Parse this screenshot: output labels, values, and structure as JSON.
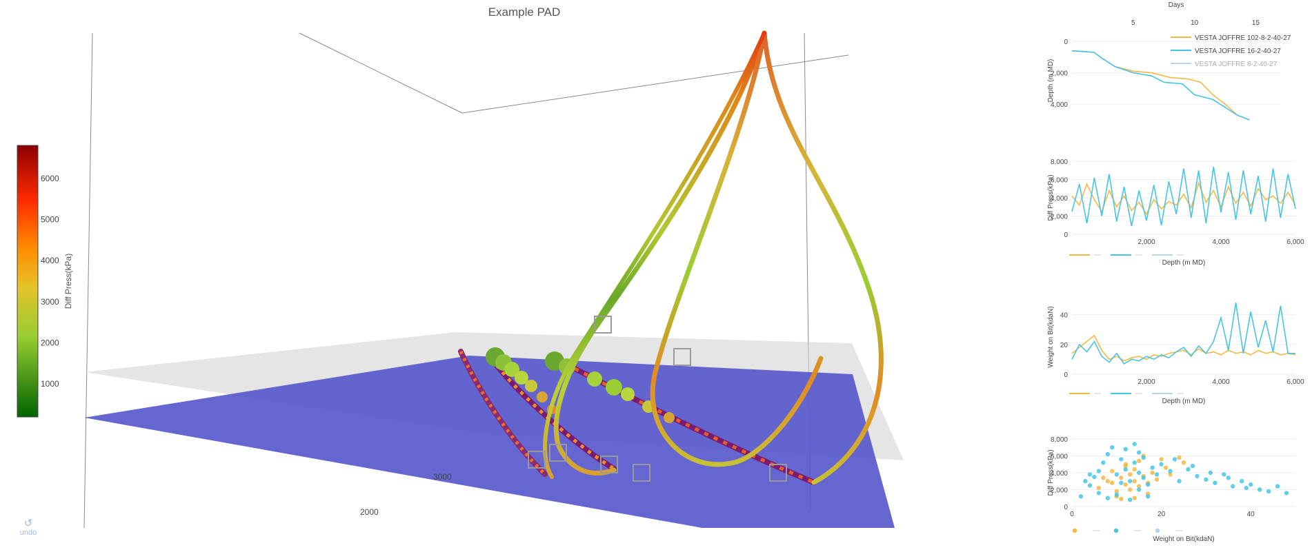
{
  "title": "Example PAD",
  "undo_label": "undo",
  "colorbar": {
    "title": "Diff Press(kPa)",
    "ticks": [
      1000,
      2000,
      3000,
      4000,
      5000,
      6000
    ],
    "range": [
      200,
      6800
    ],
    "colorscale": [
      "#006400",
      "#9acd32",
      "#e6c229",
      "#ff8c00",
      "#ff2a00",
      "#8b0000"
    ]
  },
  "scene_labels": {
    "tick_3000": "3000",
    "tick_2000": "2000"
  },
  "colors": {
    "well1": "#f5b942",
    "well2": "#45c5e6",
    "well3": "#b7d3ea",
    "formation": "#5555cc"
  },
  "chart_data": [
    {
      "type": "line",
      "title": "",
      "xlabel": "Days",
      "ylabel": "Depth (m MD)",
      "x_ticks": [
        5,
        10,
        15
      ],
      "y_ticks": [
        0,
        2000,
        4000
      ],
      "xlim": [
        0,
        17
      ],
      "ylim": [
        0,
        5000
      ],
      "y_reversed": true,
      "legend_position": "top-right",
      "series": [
        {
          "name": "VESTA JOFFRE 102-8-2-40-27",
          "color": "#f5b942",
          "visible": true,
          "x": [
            0,
            1,
            1.8,
            2.5,
            3.5,
            5,
            6.5,
            8,
            9.5,
            10.5,
            11.5,
            12.5,
            13.5,
            14.5
          ],
          "y": [
            600,
            650,
            700,
            1100,
            1600,
            1900,
            2000,
            2300,
            2400,
            2600,
            3400,
            4000,
            4700,
            5000
          ]
        },
        {
          "name": "VESTA JOFFRE 16-2-40-27",
          "color": "#45c5e6",
          "visible": true,
          "x": [
            0,
            1,
            1.8,
            2.5,
            3.5,
            5,
            6.5,
            7.5,
            9,
            10,
            11.5,
            12.5,
            13.5,
            14.5
          ],
          "y": [
            600,
            650,
            700,
            1100,
            1600,
            2000,
            2200,
            2600,
            2700,
            3400,
            3700,
            4200,
            4700,
            5000
          ]
        },
        {
          "name": "VESTA JOFFRE 8-2-40-27",
          "color": "#b7d3ea",
          "visible": false,
          "x": [],
          "y": []
        }
      ]
    },
    {
      "type": "line",
      "title": "",
      "xlabel": "Depth (m MD)",
      "ylabel": "Diff Press(kPa)",
      "x_ticks": [
        2000,
        4000,
        6000
      ],
      "y_ticks": [
        0,
        2000,
        4000,
        6000,
        8000
      ],
      "xlim": [
        0,
        6000
      ],
      "ylim": [
        0,
        8000
      ],
      "series": [
        {
          "name": "VESTA JOFFRE 102-8-2-40-27",
          "color": "#f5b942",
          "x": [
            0,
            200,
            400,
            600,
            800,
            1000,
            1200,
            1400,
            1600,
            1800,
            2000,
            2200,
            2400,
            2600,
            2800,
            3000,
            3200,
            3400,
            3600,
            3800,
            4000,
            4200,
            4400,
            4600,
            4800,
            5000,
            5200,
            5400,
            5600,
            5800,
            6000
          ],
          "y": [
            4200,
            3200,
            5500,
            3800,
            2500,
            4800,
            3000,
            4200,
            2600,
            3500,
            2200,
            3800,
            2800,
            3600,
            3200,
            4400,
            2900,
            5600,
            3500,
            4800,
            3000,
            5200,
            3400,
            4600,
            3100,
            5000,
            3800,
            4200,
            3400,
            4600,
            3200
          ]
        },
        {
          "name": "VESTA JOFFRE 16-2-40-27",
          "color": "#45c5e6",
          "x": [
            0,
            200,
            400,
            600,
            800,
            1000,
            1200,
            1400,
            1600,
            1800,
            2000,
            2200,
            2400,
            2600,
            2800,
            3000,
            3200,
            3400,
            3600,
            3800,
            4000,
            4200,
            4400,
            4600,
            4800,
            5000,
            5200,
            5400,
            5600,
            5800,
            6000
          ],
          "y": [
            2500,
            5500,
            1200,
            6200,
            2000,
            6600,
            1400,
            5200,
            900,
            4800,
            1500,
            5400,
            1000,
            5800,
            2200,
            7200,
            1800,
            7000,
            1200,
            7400,
            2400,
            6800,
            1600,
            7000,
            2200,
            6400,
            1400,
            7200,
            1800,
            6600,
            2800
          ]
        },
        {
          "name": "VESTA JOFFRE 8-2-40-27",
          "color": "#b7d3ea",
          "visible": false,
          "x": [],
          "y": []
        }
      ]
    },
    {
      "type": "line",
      "title": "",
      "xlabel": "Depth (m MD)",
      "ylabel": "Weight on Bit(kdaN)",
      "x_ticks": [
        2000,
        4000,
        6000
      ],
      "y_ticks": [
        0,
        20,
        40
      ],
      "xlim": [
        0,
        6000
      ],
      "ylim": [
        0,
        50
      ],
      "series": [
        {
          "name": "VESTA JOFFRE 102-8-2-40-27",
          "color": "#f5b942",
          "x": [
            0,
            200,
            400,
            600,
            800,
            1000,
            1200,
            1400,
            1600,
            1800,
            2000,
            2200,
            2400,
            2600,
            2800,
            3000,
            3200,
            3400,
            3600,
            3800,
            4000,
            4200,
            4400,
            4600,
            4800,
            5000,
            5200,
            5400,
            5600,
            5800,
            6000
          ],
          "y": [
            14,
            18,
            22,
            26,
            16,
            10,
            12,
            9,
            11,
            12,
            10,
            13,
            12,
            14,
            15,
            16,
            13,
            17,
            14,
            15,
            13,
            16,
            14,
            15,
            13,
            16,
            14,
            15,
            13,
            14,
            13
          ]
        },
        {
          "name": "VESTA JOFFRE 16-2-40-27",
          "color": "#45c5e6",
          "x": [
            0,
            200,
            400,
            600,
            800,
            1000,
            1200,
            1400,
            1600,
            1800,
            2000,
            2200,
            2400,
            2600,
            2800,
            3000,
            3200,
            3400,
            3600,
            3800,
            4000,
            4200,
            4400,
            4600,
            4800,
            5000,
            5200,
            5400,
            5600,
            5800,
            6000
          ],
          "y": [
            10,
            20,
            15,
            22,
            12,
            8,
            14,
            7,
            10,
            9,
            12,
            10,
            13,
            11,
            15,
            18,
            12,
            19,
            14,
            22,
            38,
            16,
            48,
            14,
            42,
            18,
            36,
            15,
            46,
            14,
            14
          ]
        },
        {
          "name": "VESTA JOFFRE 8-2-40-27",
          "color": "#b7d3ea",
          "visible": false,
          "x": [],
          "y": []
        }
      ]
    },
    {
      "type": "scatter",
      "title": "",
      "xlabel": "Weight on Bit(kdaN)",
      "ylabel": "Diff Press(kPa)",
      "x_ticks": [
        0,
        20,
        40
      ],
      "y_ticks": [
        0,
        2000,
        4000,
        6000,
        8000
      ],
      "xlim": [
        0,
        50
      ],
      "ylim": [
        0,
        8000
      ],
      "series": [
        {
          "name": "VESTA JOFFRE 102-8-2-40-27",
          "color": "#f5b942",
          "x": [
            6,
            8,
            9,
            10,
            11,
            12,
            12,
            13,
            13,
            14,
            14,
            15,
            15,
            16,
            16,
            17,
            18,
            19,
            20,
            22,
            24,
            25,
            10,
            11,
            9,
            14,
            17,
            21,
            7,
            12
          ],
          "y": [
            2200,
            3000,
            4200,
            1800,
            3400,
            2600,
            5000,
            3800,
            2000,
            4400,
            3000,
            5400,
            2400,
            3600,
            6000,
            2800,
            4000,
            3200,
            5600,
            3800,
            5800,
            5200,
            1200,
            900,
            2800,
            1000,
            1500,
            4600,
            3400,
            4800
          ]
        },
        {
          "name": "VESTA JOFFRE 16-2-40-27",
          "color": "#45c5e6",
          "x": [
            3,
            4,
            5,
            6,
            7,
            8,
            9,
            10,
            11,
            12,
            12,
            13,
            14,
            14,
            15,
            15,
            16,
            16,
            17,
            18,
            19,
            20,
            22,
            24,
            26,
            28,
            30,
            32,
            34,
            36,
            38,
            40,
            42,
            44,
            46,
            48,
            8,
            10,
            13,
            15,
            17,
            11,
            6,
            4,
            2,
            23,
            27,
            31,
            35,
            39
          ],
          "y": [
            3000,
            2500,
            3500,
            4200,
            5200,
            6200,
            7000,
            3800,
            5600,
            4400,
            6800,
            3000,
            5200,
            7400,
            4000,
            6400,
            3400,
            5800,
            2600,
            4600,
            3800,
            5000,
            4200,
            3000,
            4400,
            3600,
            3200,
            2800,
            3800,
            2400,
            3000,
            2600,
            2000,
            1800,
            2400,
            1600,
            1000,
            1400,
            800,
            2000,
            1200,
            2800,
            1600,
            3800,
            1200,
            5600,
            4800,
            4000,
            3400,
            2200
          ]
        },
        {
          "name": "VESTA JOFFRE 8-2-40-27",
          "color": "#b7d3ea",
          "visible": false,
          "x": [],
          "y": []
        }
      ]
    }
  ]
}
